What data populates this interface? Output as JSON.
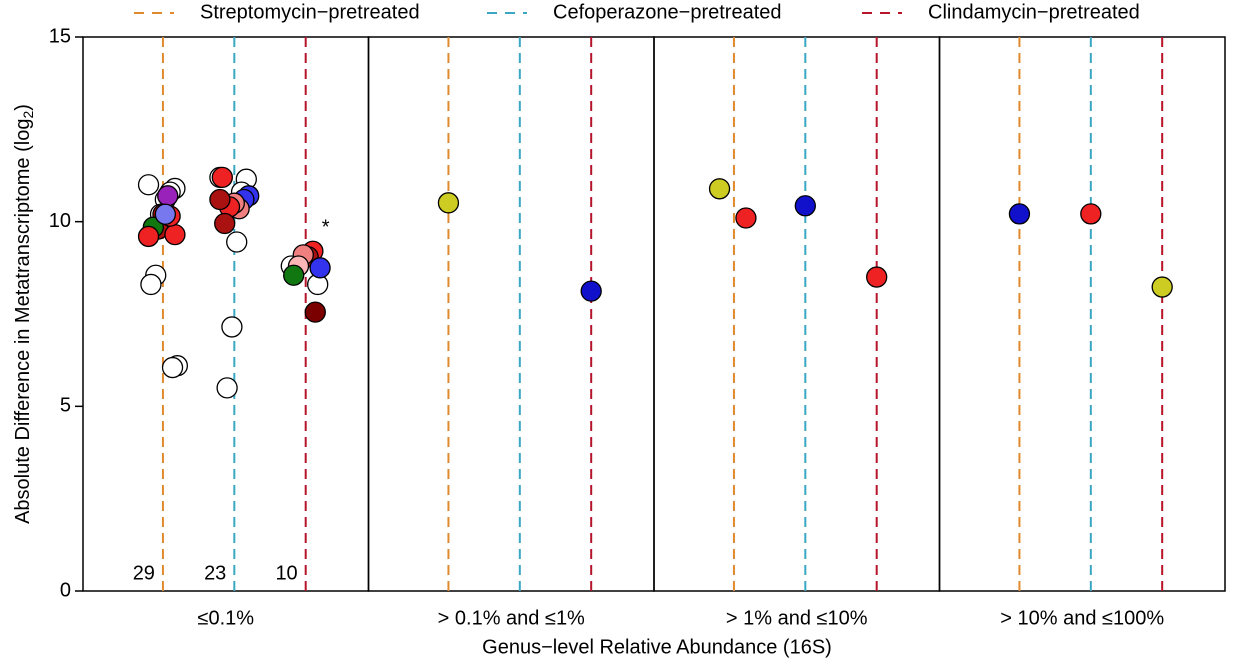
{
  "chart_data": {
    "type": "strip",
    "y_label": "Absolute Difference in Metatranscriptome (log",
    "y_label_sub": "2",
    "y_label_end": ")",
    "x_label": "Genus−level Relative Abundance (16S)",
    "categories": [
      "≤0.1%",
      "> 0.1% and  ≤1%",
      "> 1% and  ≤10%",
      "> 10% and  ≤100%"
    ],
    "ylim": [
      0,
      15
    ],
    "yticks": [
      0,
      5,
      10,
      15
    ],
    "n_labels": [
      29,
      23,
      10
    ],
    "annotation": "*",
    "series": [
      {
        "name": "Streptomycin−pretreated",
        "color": "#e08a2e",
        "points": [
          [
            {
              "value": 11.0,
              "color": "#ffffff"
            },
            {
              "value": 10.9,
              "color": "#ffffff"
            },
            {
              "value": 10.8,
              "color": "#ffffff"
            },
            {
              "value": 10.6,
              "color": "#ffffff"
            },
            {
              "value": 10.2,
              "color": "#ffffff"
            },
            {
              "value": 8.55,
              "color": "#ffffff"
            },
            {
              "value": 8.3,
              "color": "#ffffff"
            },
            {
              "value": 6.1,
              "color": "#ffffff"
            },
            {
              "value": 6.05,
              "color": "#ffffff"
            },
            {
              "value": 10.7,
              "color": "#9922bb"
            },
            {
              "value": 10.2,
              "color": "#aa1111"
            },
            {
              "value": 9.8,
              "color": "#aa1111"
            },
            {
              "value": 9.85,
              "color": "#117711"
            },
            {
              "value": 9.6,
              "color": "#ee2222"
            },
            {
              "value": 9.65,
              "color": "#ee2222"
            },
            {
              "value": 10.15,
              "color": "#ee2222"
            },
            {
              "value": 10.2,
              "color": "#7777ee"
            }
          ],
          [
            {
              "value": 10.51,
              "color": "#cccc22"
            }
          ],
          [
            {
              "value": 10.89,
              "color": "#cccc22"
            },
            {
              "value": 10.1,
              "color": "#ee2222"
            }
          ],
          [
            {
              "value": 10.21,
              "color": "#1111cc"
            }
          ]
        ]
      },
      {
        "name": "Cefoperazone−pretreated",
        "color": "#3aa7c4",
        "points": [
          [
            {
              "value": 11.2,
              "color": "#ffffff"
            },
            {
              "value": 11.15,
              "color": "#ffffff"
            },
            {
              "value": 10.8,
              "color": "#ffffff"
            },
            {
              "value": 9.45,
              "color": "#ffffff"
            },
            {
              "value": 7.15,
              "color": "#ffffff"
            },
            {
              "value": 5.5,
              "color": "#ffffff"
            },
            {
              "value": 11.2,
              "color": "#ee2222"
            },
            {
              "value": 10.7,
              "color": "#3333ee"
            },
            {
              "value": 10.6,
              "color": "#3333ee"
            },
            {
              "value": 10.35,
              "color": "#f08080"
            },
            {
              "value": 10.5,
              "color": "#f08080"
            },
            {
              "value": 10.4,
              "color": "#ee2222"
            },
            {
              "value": 9.95,
              "color": "#aa1111"
            },
            {
              "value": 10.6,
              "color": "#aa1111"
            }
          ],
          [],
          [
            {
              "value": 10.43,
              "color": "#1111cc"
            }
          ],
          [
            {
              "value": 10.21,
              "color": "#ee2222"
            }
          ]
        ]
      },
      {
        "name": "Clindamycin−pretreated",
        "color": "#b5142b",
        "points": [
          [
            {
              "value": 8.8,
              "color": "#ffffff"
            },
            {
              "value": 8.3,
              "color": "#ffffff"
            },
            {
              "value": 9.2,
              "color": "#ee2222"
            },
            {
              "value": 9.05,
              "color": "#aa1111"
            },
            {
              "value": 9.1,
              "color": "#f08080"
            },
            {
              "value": 8.8,
              "color": "#ffb6b6"
            },
            {
              "value": 8.55,
              "color": "#117711"
            },
            {
              "value": 8.75,
              "color": "#3333ee"
            },
            {
              "value": 7.55,
              "color": "#7a0000"
            }
          ],
          [
            {
              "value": 8.12,
              "color": "#1111cc"
            }
          ],
          [
            {
              "value": 8.5,
              "color": "#ee2222"
            }
          ],
          [
            {
              "value": 8.23,
              "color": "#cccc22"
            }
          ]
        ]
      }
    ]
  }
}
